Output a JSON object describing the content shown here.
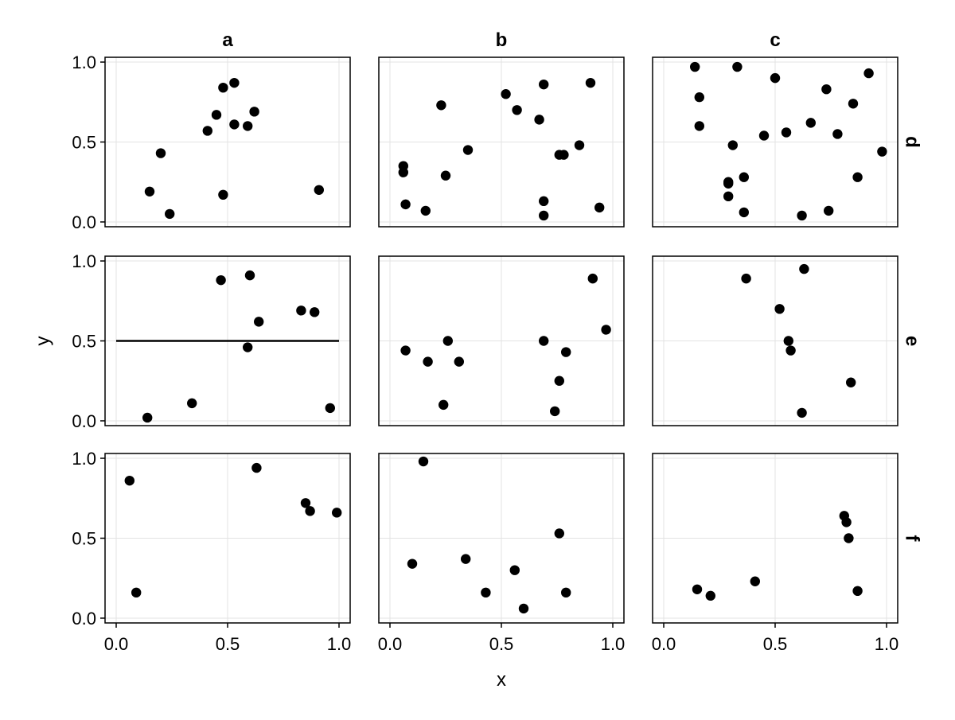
{
  "chart_data": {
    "type": "scatter",
    "xlabel": "x",
    "ylabel": "y",
    "xlim": [
      -0.05,
      1.05
    ],
    "ylim": [
      -0.03,
      1.03
    ],
    "x_ticks": [
      0.0,
      0.5,
      1.0
    ],
    "y_ticks": [
      0.0,
      0.5,
      1.0
    ],
    "x_tick_labels": [
      "0.0",
      "0.5",
      "1.0"
    ],
    "y_tick_labels": [
      "0.0",
      "0.5",
      "1.0"
    ],
    "grid": true,
    "column_labels": [
      "a",
      "b",
      "c"
    ],
    "row_labels": [
      "d",
      "e",
      "f"
    ],
    "marker_color": "#000000",
    "panels": [
      {
        "row": "d",
        "col": "a",
        "points": [
          [
            0.15,
            0.19
          ],
          [
            0.2,
            0.43
          ],
          [
            0.24,
            0.05
          ],
          [
            0.41,
            0.57
          ],
          [
            0.45,
            0.67
          ],
          [
            0.48,
            0.84
          ],
          [
            0.48,
            0.17
          ],
          [
            0.53,
            0.87
          ],
          [
            0.53,
            0.61
          ],
          [
            0.59,
            0.6
          ],
          [
            0.62,
            0.69
          ],
          [
            0.91,
            0.2
          ]
        ]
      },
      {
        "row": "d",
        "col": "b",
        "points": [
          [
            0.06,
            0.31
          ],
          [
            0.06,
            0.35
          ],
          [
            0.07,
            0.11
          ],
          [
            0.16,
            0.07
          ],
          [
            0.23,
            0.73
          ],
          [
            0.25,
            0.29
          ],
          [
            0.35,
            0.45
          ],
          [
            0.52,
            0.8
          ],
          [
            0.57,
            0.7
          ],
          [
            0.67,
            0.64
          ],
          [
            0.69,
            0.86
          ],
          [
            0.69,
            0.13
          ],
          [
            0.69,
            0.04
          ],
          [
            0.76,
            0.42
          ],
          [
            0.78,
            0.42
          ],
          [
            0.85,
            0.48
          ],
          [
            0.9,
            0.87
          ],
          [
            0.94,
            0.09
          ]
        ]
      },
      {
        "row": "d",
        "col": "c",
        "points": [
          [
            0.14,
            0.97
          ],
          [
            0.16,
            0.78
          ],
          [
            0.16,
            0.6
          ],
          [
            0.29,
            0.25
          ],
          [
            0.29,
            0.24
          ],
          [
            0.29,
            0.16
          ],
          [
            0.31,
            0.48
          ],
          [
            0.33,
            0.97
          ],
          [
            0.36,
            0.28
          ],
          [
            0.36,
            0.06
          ],
          [
            0.45,
            0.54
          ],
          [
            0.5,
            0.9
          ],
          [
            0.55,
            0.56
          ],
          [
            0.62,
            0.04
          ],
          [
            0.66,
            0.62
          ],
          [
            0.73,
            0.83
          ],
          [
            0.74,
            0.07
          ],
          [
            0.78,
            0.55
          ],
          [
            0.85,
            0.74
          ],
          [
            0.87,
            0.28
          ],
          [
            0.92,
            0.93
          ],
          [
            0.98,
            0.44
          ]
        ]
      },
      {
        "row": "e",
        "col": "a",
        "points": [
          [
            0.14,
            0.02
          ],
          [
            0.34,
            0.11
          ],
          [
            0.47,
            0.88
          ],
          [
            0.59,
            0.46
          ],
          [
            0.6,
            0.91
          ],
          [
            0.64,
            0.62
          ],
          [
            0.83,
            0.69
          ],
          [
            0.89,
            0.68
          ],
          [
            0.96,
            0.08
          ]
        ],
        "hline": {
          "y": 0.5,
          "x_from": 0.0,
          "x_to": 1.0
        }
      },
      {
        "row": "e",
        "col": "b",
        "points": [
          [
            0.07,
            0.44
          ],
          [
            0.17,
            0.37
          ],
          [
            0.24,
            0.1
          ],
          [
            0.26,
            0.5
          ],
          [
            0.31,
            0.37
          ],
          [
            0.69,
            0.5
          ],
          [
            0.74,
            0.06
          ],
          [
            0.76,
            0.25
          ],
          [
            0.79,
            0.43
          ],
          [
            0.91,
            0.89
          ],
          [
            0.97,
            0.57
          ]
        ]
      },
      {
        "row": "e",
        "col": "c",
        "points": [
          [
            0.37,
            0.89
          ],
          [
            0.52,
            0.7
          ],
          [
            0.56,
            0.5
          ],
          [
            0.57,
            0.44
          ],
          [
            0.62,
            0.05
          ],
          [
            0.63,
            0.95
          ],
          [
            0.84,
            0.24
          ]
        ]
      },
      {
        "row": "f",
        "col": "a",
        "points": [
          [
            0.06,
            0.86
          ],
          [
            0.09,
            0.16
          ],
          [
            0.63,
            0.94
          ],
          [
            0.85,
            0.72
          ],
          [
            0.87,
            0.67
          ],
          [
            0.99,
            0.66
          ]
        ]
      },
      {
        "row": "f",
        "col": "b",
        "points": [
          [
            0.1,
            0.34
          ],
          [
            0.15,
            0.98
          ],
          [
            0.34,
            0.37
          ],
          [
            0.43,
            0.16
          ],
          [
            0.56,
            0.3
          ],
          [
            0.6,
            0.06
          ],
          [
            0.76,
            0.53
          ],
          [
            0.79,
            0.16
          ]
        ]
      },
      {
        "row": "f",
        "col": "c",
        "points": [
          [
            0.15,
            0.18
          ],
          [
            0.21,
            0.14
          ],
          [
            0.41,
            0.23
          ],
          [
            0.81,
            0.64
          ],
          [
            0.82,
            0.6
          ],
          [
            0.83,
            0.5
          ],
          [
            0.87,
            0.17
          ]
        ]
      }
    ]
  }
}
